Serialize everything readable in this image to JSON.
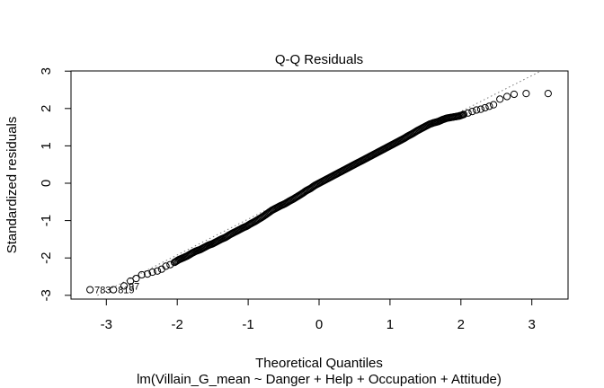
{
  "chart_data": {
    "type": "scatter",
    "title": "Q-Q Residuals",
    "xlabel": "Theoretical Quantiles",
    "ylabel": "Standardized residuals",
    "subtitle": "lm(Villain_G_mean ~ Danger + Help + Occupation + Attitude)",
    "xlim": [
      -3.5,
      3.5
    ],
    "ylim": [
      -3.0,
      3.0
    ],
    "x_ticks": [
      -3,
      -2,
      -1,
      0,
      1,
      2,
      3
    ],
    "y_ticks": [
      -3,
      -2,
      -1,
      0,
      1,
      2,
      3
    ],
    "grid": false,
    "reference_line": {
      "intercept": 0.0,
      "slope": 0.96,
      "style": "dotted"
    },
    "labeled_points": [
      {
        "x": -3.23,
        "y": -2.85,
        "label": "783"
      },
      {
        "x": -2.9,
        "y": -2.85,
        "label": "819"
      },
      {
        "x": -2.75,
        "y": -2.75,
        "label": "97"
      }
    ],
    "points": [
      [
        -3.23,
        -2.85
      ],
      [
        -2.9,
        -2.85
      ],
      [
        -2.75,
        -2.75
      ],
      [
        -2.66,
        -2.62
      ],
      [
        -2.58,
        -2.55
      ],
      [
        -2.5,
        -2.45
      ],
      [
        -2.42,
        -2.43
      ],
      [
        -2.35,
        -2.38
      ],
      [
        -2.28,
        -2.35
      ],
      [
        -2.22,
        -2.3
      ],
      [
        -2.16,
        -2.22
      ],
      [
        -2.1,
        -2.18
      ],
      [
        -2.04,
        -2.12
      ],
      [
        -1.98,
        -2.05
      ],
      [
        -1.92,
        -2.0
      ],
      [
        -1.86,
        -1.95
      ],
      [
        -1.8,
        -1.88
      ],
      [
        -1.74,
        -1.82
      ],
      [
        -1.68,
        -1.78
      ],
      [
        -1.62,
        -1.72
      ],
      [
        -1.56,
        -1.66
      ],
      [
        -1.5,
        -1.62
      ],
      [
        -1.44,
        -1.56
      ],
      [
        -1.38,
        -1.5
      ],
      [
        -1.32,
        -1.45
      ],
      [
        -1.26,
        -1.38
      ],
      [
        -1.2,
        -1.32
      ],
      [
        -1.14,
        -1.26
      ],
      [
        -1.08,
        -1.2
      ],
      [
        -1.02,
        -1.15
      ],
      [
        -0.96,
        -1.08
      ],
      [
        -0.9,
        -1.02
      ],
      [
        -0.84,
        -0.95
      ],
      [
        -0.78,
        -0.88
      ],
      [
        -0.72,
        -0.8
      ],
      [
        -0.66,
        -0.72
      ],
      [
        -0.6,
        -0.66
      ],
      [
        -0.54,
        -0.6
      ],
      [
        -0.48,
        -0.55
      ],
      [
        -0.42,
        -0.48
      ],
      [
        -0.36,
        -0.42
      ],
      [
        -0.3,
        -0.35
      ],
      [
        -0.24,
        -0.28
      ],
      [
        -0.18,
        -0.2
      ],
      [
        -0.12,
        -0.14
      ],
      [
        -0.06,
        -0.06
      ],
      [
        0.0,
        0.0
      ],
      [
        0.06,
        0.06
      ],
      [
        0.12,
        0.12
      ],
      [
        0.18,
        0.18
      ],
      [
        0.24,
        0.24
      ],
      [
        0.3,
        0.3
      ],
      [
        0.36,
        0.36
      ],
      [
        0.42,
        0.42
      ],
      [
        0.48,
        0.48
      ],
      [
        0.54,
        0.54
      ],
      [
        0.6,
        0.6
      ],
      [
        0.66,
        0.66
      ],
      [
        0.72,
        0.72
      ],
      [
        0.78,
        0.78
      ],
      [
        0.84,
        0.84
      ],
      [
        0.9,
        0.9
      ],
      [
        0.96,
        0.96
      ],
      [
        1.02,
        1.02
      ],
      [
        1.08,
        1.08
      ],
      [
        1.14,
        1.14
      ],
      [
        1.2,
        1.2
      ],
      [
        1.26,
        1.27
      ],
      [
        1.32,
        1.33
      ],
      [
        1.38,
        1.4
      ],
      [
        1.44,
        1.46
      ],
      [
        1.5,
        1.52
      ],
      [
        1.56,
        1.58
      ],
      [
        1.62,
        1.62
      ],
      [
        1.68,
        1.65
      ],
      [
        1.74,
        1.7
      ],
      [
        1.8,
        1.74
      ],
      [
        1.86,
        1.76
      ],
      [
        1.92,
        1.78
      ],
      [
        1.98,
        1.8
      ],
      [
        2.04,
        1.84
      ],
      [
        2.1,
        1.88
      ],
      [
        2.16,
        1.92
      ],
      [
        2.22,
        1.96
      ],
      [
        2.28,
        1.98
      ],
      [
        2.34,
        2.02
      ],
      [
        2.4,
        2.06
      ],
      [
        2.46,
        2.1
      ],
      [
        2.55,
        2.25
      ],
      [
        2.65,
        2.32
      ],
      [
        2.75,
        2.38
      ],
      [
        2.92,
        2.4
      ],
      [
        3.23,
        2.4
      ]
    ]
  }
}
